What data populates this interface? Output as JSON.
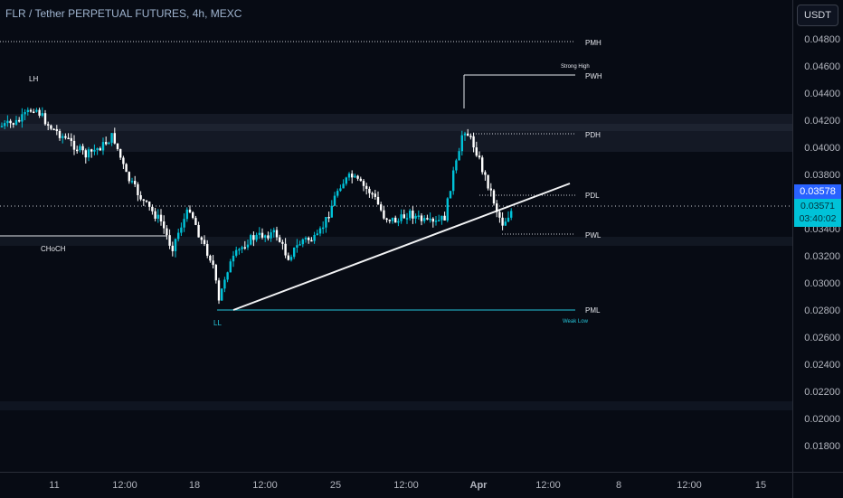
{
  "header": {
    "title": "FLR / Tether PERPETUAL FUTURES, 4h, MEXC"
  },
  "price_axis": {
    "unit_label": "USDT",
    "ticks": [
      "0.04800",
      "0.04600",
      "0.04400",
      "0.04200",
      "0.04000",
      "0.03800",
      "0.03600",
      "0.03400",
      "0.03200",
      "0.03000",
      "0.02800",
      "0.02600",
      "0.02400",
      "0.02200",
      "0.02000",
      "0.01800"
    ],
    "last_price_label": "0.03578",
    "live_price": "0.03571",
    "countdown": "03:40:02"
  },
  "time_axis": {
    "ticks": [
      "11",
      "12:00",
      "18",
      "12:00",
      "25",
      "12:00",
      "Apr",
      "12:00",
      "8",
      "12:00",
      "15"
    ]
  },
  "annotations": {
    "pmh": "PMH",
    "pwh": "PWH",
    "strong_high": "Strong High",
    "pdh": "PDH",
    "pdl": "PDL",
    "pwl": "PWL",
    "pml": "PML",
    "weak_low": "Weak Low",
    "lh": "LH",
    "ll": "LL",
    "choch": "CHoCH"
  },
  "colors": {
    "background": "#070b14",
    "up": "#00c2d8",
    "down": "#ffffff",
    "accent": "#2962ff",
    "level_line": "#26c6da"
  }
}
